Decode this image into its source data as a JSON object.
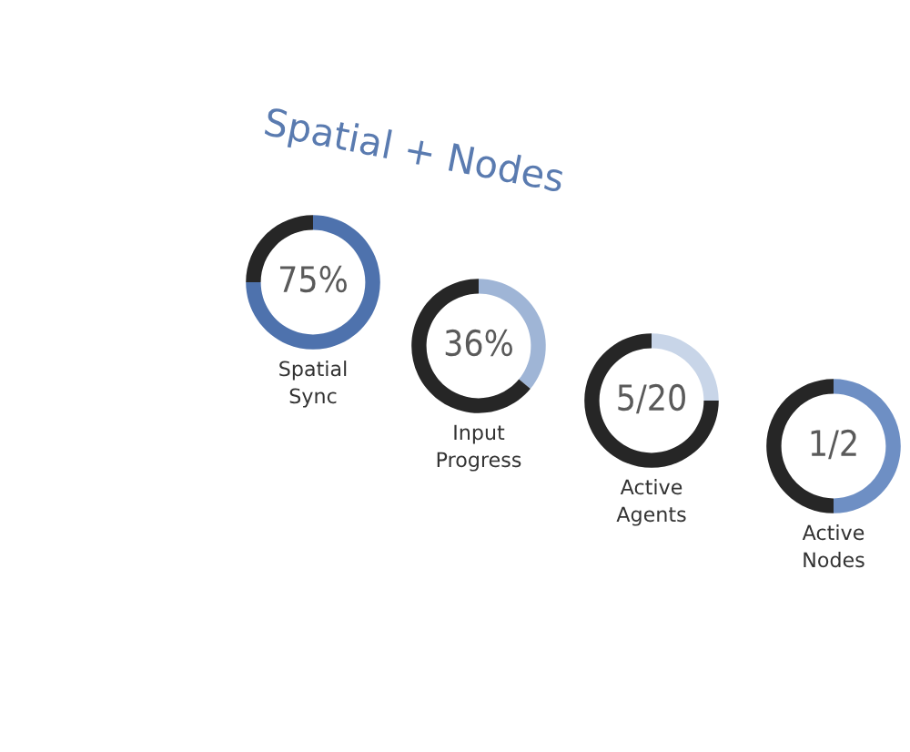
{
  "chart_data": [
    {
      "type": "donut",
      "title": "Spatial + Nodes",
      "categories": [
        null,
        null
      ],
      "values": [
        75,
        25
      ],
      "colors": [
        "#4e72ad",
        "#262626"
      ],
      "annotations": [
        "75%"
      ],
      "xlabel": "Spatial Sync"
    },
    {
      "type": "donut",
      "categories": [
        null,
        null
      ],
      "values": [
        36,
        64
      ],
      "colors": [
        "#9fb5d6",
        "#262626"
      ],
      "annotations": [
        "36%"
      ],
      "xlabel": "Input Progress"
    },
    {
      "type": "donut",
      "categories": [
        null,
        null
      ],
      "values": [
        25,
        75
      ],
      "colors": [
        "#c8d5e8",
        "#262626"
      ],
      "annotations": [
        "5/20"
      ],
      "xlabel": "Active Agents"
    },
    {
      "type": "donut",
      "categories": [
        null,
        null
      ],
      "values": [
        50,
        50
      ],
      "colors": [
        "#6e8fc4",
        "#262626"
      ],
      "annotations": [
        "1/2"
      ],
      "xlabel": "Active Nodes"
    }
  ]
}
